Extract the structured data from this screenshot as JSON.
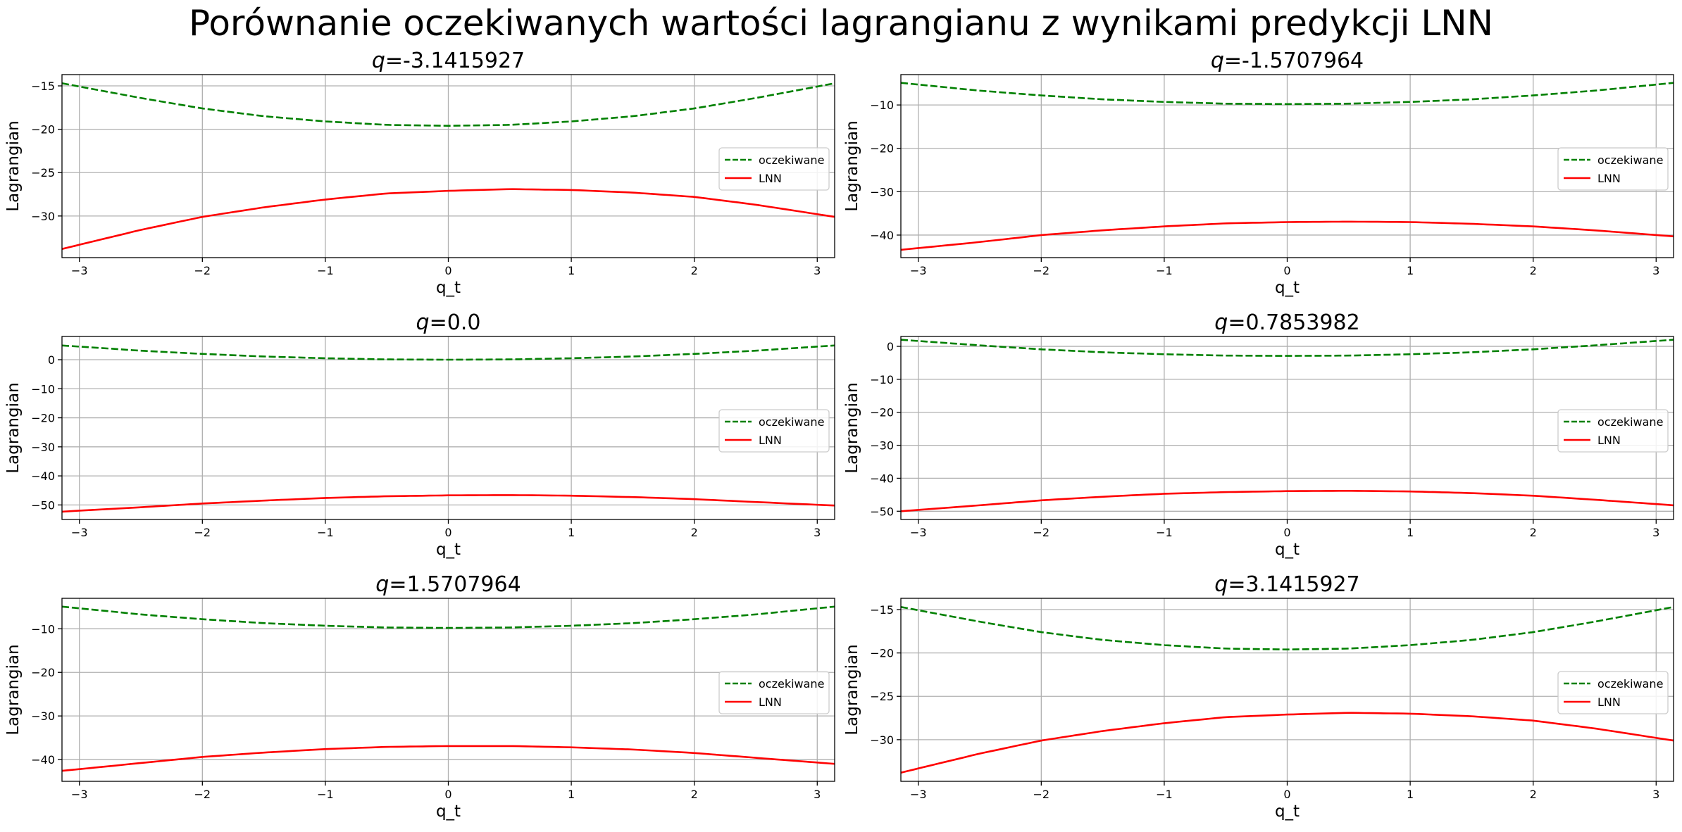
{
  "figure": {
    "title": "Porównanie oczekiwanych wartości lagrangianu z wynikami predykcji LNN"
  },
  "chart_data": [
    {
      "type": "line",
      "title_var": "q",
      "title_value": "=-3.1415927",
      "xlabel": "q_t",
      "ylabel": "Lagrangian",
      "xlim": [
        -3.1416,
        3.1416
      ],
      "ylim": [
        -34.8,
        -13.7
      ],
      "xticks": [
        -3,
        -2,
        -1,
        0,
        1,
        2,
        3
      ],
      "yticks": [
        -30,
        -25,
        -20,
        -15
      ],
      "grid": true,
      "legend_position": "center-right",
      "series": [
        {
          "name": "oczekiwane",
          "color": "#008000",
          "style": "dashed",
          "x": [
            -3.1416,
            -2.5,
            -2,
            -1.5,
            -1,
            -0.5,
            0,
            0.5,
            1,
            1.5,
            2,
            2.5,
            3.1416
          ],
          "y": [
            -14.7,
            -16.4,
            -17.6,
            -18.5,
            -19.1,
            -19.5,
            -19.6,
            -19.5,
            -19.1,
            -18.5,
            -17.6,
            -16.4,
            -14.7
          ]
        },
        {
          "name": "LNN",
          "color": "#ff0000",
          "style": "solid",
          "x": [
            -3.1416,
            -2.5,
            -2,
            -1.5,
            -1,
            -0.5,
            0,
            0.5,
            1,
            1.5,
            2,
            2.5,
            3.1416
          ],
          "y": [
            -33.8,
            -31.6,
            -30.1,
            -29.0,
            -28.1,
            -27.4,
            -27.1,
            -26.9,
            -27.0,
            -27.3,
            -27.8,
            -28.7,
            -30.1
          ]
        }
      ]
    },
    {
      "type": "line",
      "title_var": "q",
      "title_value": "=-1.5707964",
      "xlabel": "q_t",
      "ylabel": "Lagrangian",
      "xlim": [
        -3.1416,
        3.1416
      ],
      "ylim": [
        -45.2,
        -3.0
      ],
      "xticks": [
        -3,
        -2,
        -1,
        0,
        1,
        2,
        3
      ],
      "yticks": [
        -40,
        -30,
        -20,
        -10
      ],
      "grid": true,
      "legend_position": "center-right",
      "series": [
        {
          "name": "oczekiwane",
          "color": "#008000",
          "style": "dashed",
          "x": [
            -3.1416,
            -2.5,
            -2,
            -1.5,
            -1,
            -0.5,
            0,
            0.5,
            1,
            1.5,
            2,
            2.5,
            3.1416
          ],
          "y": [
            -4.9,
            -6.7,
            -7.8,
            -8.7,
            -9.3,
            -9.7,
            -9.8,
            -9.7,
            -9.3,
            -8.7,
            -7.8,
            -6.7,
            -4.9
          ]
        },
        {
          "name": "LNN",
          "color": "#ff0000",
          "style": "solid",
          "x": [
            -3.1416,
            -2.5,
            -2,
            -1.5,
            -1,
            -0.5,
            0,
            0.5,
            1,
            1.5,
            2,
            2.5,
            3.1416
          ],
          "y": [
            -43.4,
            -41.6,
            -40.0,
            -38.9,
            -38.0,
            -37.3,
            -37.0,
            -36.9,
            -37.0,
            -37.4,
            -38.0,
            -38.9,
            -40.3
          ]
        }
      ]
    },
    {
      "type": "line",
      "title_var": "q",
      "title_value": "=0.0",
      "xlabel": "q_t",
      "ylabel": "Lagrangian",
      "xlim": [
        -3.1416,
        3.1416
      ],
      "ylim": [
        -55.0,
        8.0
      ],
      "xticks": [
        -3,
        -2,
        -1,
        0,
        1,
        2,
        3
      ],
      "yticks": [
        -50,
        -40,
        -30,
        -20,
        -10,
        0
      ],
      "grid": true,
      "legend_position": "center-right",
      "series": [
        {
          "name": "oczekiwane",
          "color": "#008000",
          "style": "dashed",
          "x": [
            -3.1416,
            -2.5,
            -2,
            -1.5,
            -1,
            -0.5,
            0,
            0.5,
            1,
            1.5,
            2,
            2.5,
            3.1416
          ],
          "y": [
            4.9,
            3.1,
            2.0,
            1.1,
            0.5,
            0.1,
            0.0,
            0.1,
            0.5,
            1.1,
            2.0,
            3.1,
            4.9
          ]
        },
        {
          "name": "LNN",
          "color": "#ff0000",
          "style": "solid",
          "x": [
            -3.1416,
            -2.5,
            -2,
            -1.5,
            -1,
            -0.5,
            0,
            0.5,
            1,
            1.5,
            2,
            2.5,
            3.1416
          ],
          "y": [
            -52.3,
            -50.8,
            -49.5,
            -48.5,
            -47.6,
            -47.0,
            -46.7,
            -46.6,
            -46.8,
            -47.3,
            -48.0,
            -49.0,
            -50.2
          ]
        }
      ]
    },
    {
      "type": "line",
      "title_var": "q",
      "title_value": "=0.7853982",
      "xlabel": "q_t",
      "ylabel": "Lagrangian",
      "xlim": [
        -3.1416,
        3.1416
      ],
      "ylim": [
        -52.5,
        3.0
      ],
      "xticks": [
        -3,
        -2,
        -1,
        0,
        1,
        2,
        3
      ],
      "yticks": [
        -50,
        -40,
        -30,
        -20,
        -10,
        0
      ],
      "grid": true,
      "legend_position": "center-right",
      "series": [
        {
          "name": "oczekiwane",
          "color": "#008000",
          "style": "dashed",
          "x": [
            -3.1416,
            -2.5,
            -2,
            -1.5,
            -1,
            -0.5,
            0,
            0.5,
            1,
            1.5,
            2,
            2.5,
            3.1416
          ],
          "y": [
            2.0,
            0.3,
            -0.9,
            -1.8,
            -2.4,
            -2.8,
            -2.9,
            -2.8,
            -2.4,
            -1.8,
            -0.9,
            0.3,
            2.0
          ]
        },
        {
          "name": "LNN",
          "color": "#ff0000",
          "style": "solid",
          "x": [
            -3.1416,
            -2.5,
            -2,
            -1.5,
            -1,
            -0.5,
            0,
            0.5,
            1,
            1.5,
            2,
            2.5,
            3.1416
          ],
          "y": [
            -50.0,
            -48.2,
            -46.7,
            -45.6,
            -44.7,
            -44.2,
            -43.9,
            -43.8,
            -44.0,
            -44.5,
            -45.3,
            -46.5,
            -48.2
          ]
        }
      ]
    },
    {
      "type": "line",
      "title_var": "q",
      "title_value": "=1.5707964",
      "xlabel": "q_t",
      "ylabel": "Lagrangian",
      "xlim": [
        -3.1416,
        3.1416
      ],
      "ylim": [
        -45.0,
        -3.0
      ],
      "xticks": [
        -3,
        -2,
        -1,
        0,
        1,
        2,
        3
      ],
      "yticks": [
        -40,
        -30,
        -20,
        -10
      ],
      "grid": true,
      "legend_position": "center-right",
      "series": [
        {
          "name": "oczekiwane",
          "color": "#008000",
          "style": "dashed",
          "x": [
            -3.1416,
            -2.5,
            -2,
            -1.5,
            -1,
            -0.5,
            0,
            0.5,
            1,
            1.5,
            2,
            2.5,
            3.1416
          ],
          "y": [
            -4.9,
            -6.7,
            -7.8,
            -8.7,
            -9.3,
            -9.7,
            -9.8,
            -9.7,
            -9.3,
            -8.7,
            -7.8,
            -6.7,
            -4.9
          ]
        },
        {
          "name": "LNN",
          "color": "#ff0000",
          "style": "solid",
          "x": [
            -3.1416,
            -2.5,
            -2,
            -1.5,
            -1,
            -0.5,
            0,
            0.5,
            1,
            1.5,
            2,
            2.5,
            3.1416
          ],
          "y": [
            -42.6,
            -40.8,
            -39.4,
            -38.4,
            -37.6,
            -37.1,
            -36.9,
            -36.9,
            -37.2,
            -37.7,
            -38.5,
            -39.6,
            -41.0
          ]
        }
      ]
    },
    {
      "type": "line",
      "title_var": "q",
      "title_value": "=3.1415927",
      "xlabel": "q_t",
      "ylabel": "Lagrangian",
      "xlim": [
        -3.1416,
        3.1416
      ],
      "ylim": [
        -34.8,
        -13.7
      ],
      "xticks": [
        -3,
        -2,
        -1,
        0,
        1,
        2,
        3
      ],
      "yticks": [
        -30,
        -25,
        -20,
        -15
      ],
      "grid": true,
      "legend_position": "center-right",
      "series": [
        {
          "name": "oczekiwane",
          "color": "#008000",
          "style": "dashed",
          "x": [
            -3.1416,
            -2.5,
            -2,
            -1.5,
            -1,
            -0.5,
            0,
            0.5,
            1,
            1.5,
            2,
            2.5,
            3.1416
          ],
          "y": [
            -14.7,
            -16.4,
            -17.6,
            -18.5,
            -19.1,
            -19.5,
            -19.6,
            -19.5,
            -19.1,
            -18.5,
            -17.6,
            -16.4,
            -14.7
          ]
        },
        {
          "name": "LNN",
          "color": "#ff0000",
          "style": "solid",
          "x": [
            -3.1416,
            -2.5,
            -2,
            -1.5,
            -1,
            -0.5,
            0,
            0.5,
            1,
            1.5,
            2,
            2.5,
            3.1416
          ],
          "y": [
            -33.8,
            -31.6,
            -30.1,
            -29.0,
            -28.1,
            -27.4,
            -27.1,
            -26.9,
            -27.0,
            -27.3,
            -27.8,
            -28.7,
            -30.1
          ]
        }
      ]
    }
  ]
}
